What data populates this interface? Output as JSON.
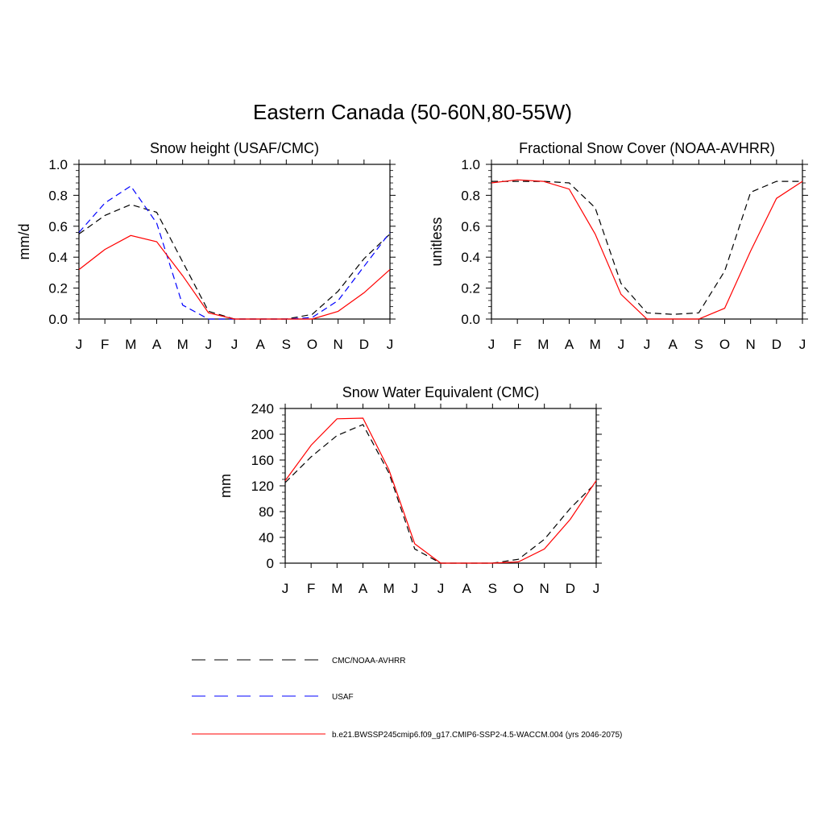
{
  "main_title": "Eastern Canada (50-60N,80-55W)",
  "months": [
    "J",
    "F",
    "M",
    "A",
    "M",
    "J",
    "J",
    "A",
    "S",
    "O",
    "N",
    "D",
    "J"
  ],
  "legend": [
    {
      "label": "CMC/NOAA-AVHRR",
      "color": "#000000",
      "dash": true
    },
    {
      "label": "USAF",
      "color": "#0000ff",
      "dash": true
    },
    {
      "label": "b.e21.BWSSP245cmip6.f09_g17.CMIP6-SSP2-4.5-WACCM.004 (yrs 2046-2075)",
      "color": "#ff0000",
      "dash": false
    }
  ],
  "chart_data": [
    {
      "type": "line",
      "title": "Snow height (USAF/CMC)",
      "ylabel": "mm/d",
      "ylim": [
        0,
        1.0
      ],
      "yticks": [
        "0.0",
        "0.2",
        "0.4",
        "0.6",
        "0.8",
        "1.0"
      ],
      "categories": [
        "J",
        "F",
        "M",
        "A",
        "M",
        "J",
        "J",
        "A",
        "S",
        "O",
        "N",
        "D",
        "J"
      ],
      "series": [
        {
          "name": "CMC/NOAA-AVHRR",
          "color": "#000000",
          "dash": true,
          "values": [
            0.55,
            0.67,
            0.74,
            0.69,
            0.37,
            0.05,
            0.0,
            0.0,
            0.0,
            0.03,
            0.18,
            0.39,
            0.55
          ]
        },
        {
          "name": "USAF",
          "color": "#0000ff",
          "dash": true,
          "values": [
            0.56,
            0.75,
            0.86,
            0.62,
            0.09,
            0.0,
            0.0,
            0.0,
            0.0,
            0.01,
            0.12,
            0.34,
            0.56
          ]
        },
        {
          "name": "b.e21.BWSSP245cmip6.f09_g17.CMIP6-SSP2-4.5-WACCM.004 (yrs 2046-2075)",
          "color": "#ff0000",
          "dash": false,
          "values": [
            0.32,
            0.45,
            0.54,
            0.5,
            0.28,
            0.04,
            0.0,
            0.0,
            0.0,
            0.0,
            0.05,
            0.17,
            0.32
          ]
        }
      ]
    },
    {
      "type": "line",
      "title": "Fractional Snow Cover (NOAA-AVHRR)",
      "ylabel": "unitless",
      "ylim": [
        0,
        1.0
      ],
      "yticks": [
        "0.0",
        "0.2",
        "0.4",
        "0.6",
        "0.8",
        "1.0"
      ],
      "categories": [
        "J",
        "F",
        "M",
        "A",
        "M",
        "J",
        "J",
        "A",
        "S",
        "O",
        "N",
        "D",
        "J"
      ],
      "series": [
        {
          "name": "CMC/NOAA-AVHRR",
          "color": "#000000",
          "dash": true,
          "values": [
            0.89,
            0.89,
            0.89,
            0.88,
            0.72,
            0.23,
            0.04,
            0.03,
            0.04,
            0.31,
            0.82,
            0.89,
            0.89
          ]
        },
        {
          "name": "b.e21.BWSSP245cmip6.f09_g17.CMIP6-SSP2-4.5-WACCM.004 (yrs 2046-2075)",
          "color": "#ff0000",
          "dash": false,
          "values": [
            0.88,
            0.9,
            0.89,
            0.84,
            0.55,
            0.16,
            0.0,
            0.0,
            0.0,
            0.07,
            0.44,
            0.78,
            0.89
          ]
        }
      ]
    },
    {
      "type": "line",
      "title": "Snow Water Equivalent (CMC)",
      "ylabel": "mm",
      "ylim": [
        0,
        240
      ],
      "yticks": [
        "0",
        "40",
        "80",
        "120",
        "160",
        "200",
        "240"
      ],
      "categories": [
        "J",
        "F",
        "M",
        "A",
        "M",
        "J",
        "J",
        "A",
        "S",
        "O",
        "N",
        "D",
        "J"
      ],
      "series": [
        {
          "name": "CMC/NOAA-AVHRR",
          "color": "#000000",
          "dash": true,
          "values": [
            125,
            165,
            198,
            215,
            140,
            22,
            0,
            0,
            0,
            6,
            37,
            85,
            125
          ]
        },
        {
          "name": "b.e21.BWSSP245cmip6.f09_g17.CMIP6-SSP2-4.5-WACCM.004 (yrs 2046-2075)",
          "color": "#ff0000",
          "dash": false,
          "values": [
            128,
            183,
            224,
            225,
            145,
            30,
            0,
            0,
            0,
            2,
            22,
            68,
            128
          ]
        }
      ]
    }
  ]
}
